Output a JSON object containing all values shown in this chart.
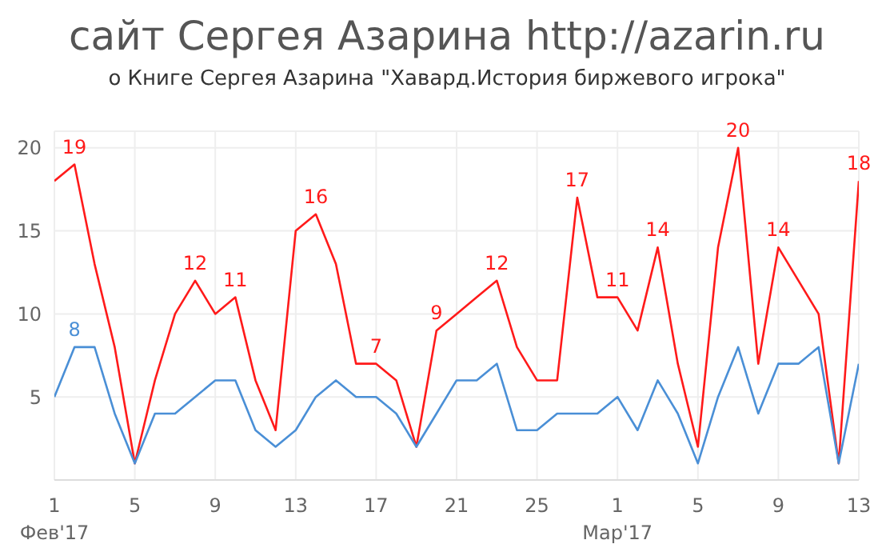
{
  "chart_data": {
    "type": "line",
    "title": "сайт Сергея Азарина http://azarin.ru",
    "subtitle": "о Книге Сергея Азарина \"Хавард.История биржевого игрока\"",
    "x": [
      "2017-02-01",
      "2017-02-02",
      "2017-02-03",
      "2017-02-04",
      "2017-02-05",
      "2017-02-06",
      "2017-02-07",
      "2017-02-08",
      "2017-02-09",
      "2017-02-10",
      "2017-02-11",
      "2017-02-12",
      "2017-02-13",
      "2017-02-14",
      "2017-02-15",
      "2017-02-16",
      "2017-02-17",
      "2017-02-18",
      "2017-02-19",
      "2017-02-20",
      "2017-02-21",
      "2017-02-22",
      "2017-02-23",
      "2017-02-24",
      "2017-02-25",
      "2017-02-26",
      "2017-02-27",
      "2017-02-28",
      "2017-03-01",
      "2017-03-02",
      "2017-03-03",
      "2017-03-04",
      "2017-03-05",
      "2017-03-06",
      "2017-03-07",
      "2017-03-08",
      "2017-03-09",
      "2017-03-10",
      "2017-03-11",
      "2017-03-12",
      "2017-03-13"
    ],
    "series": [
      {
        "color": "#ff1a1a",
        "values": [
          18,
          19,
          13,
          8,
          1,
          6,
          10,
          12,
          10,
          11,
          6,
          3,
          15,
          16,
          13,
          7,
          7,
          6,
          2,
          9,
          10,
          11,
          12,
          8,
          6,
          6,
          17,
          11,
          11,
          9,
          14,
          7,
          2,
          14,
          20,
          7,
          14,
          12,
          10,
          1,
          18
        ],
        "value_labels": [
          null,
          "19",
          null,
          null,
          null,
          null,
          null,
          "12",
          null,
          "11",
          null,
          null,
          null,
          "16",
          null,
          null,
          "7",
          null,
          null,
          "9",
          null,
          null,
          "12",
          null,
          null,
          null,
          "17",
          null,
          "11",
          null,
          "14",
          null,
          null,
          null,
          "20",
          null,
          "14",
          null,
          null,
          null,
          "18"
        ]
      },
      {
        "color": "#4a8fd6",
        "values": [
          5,
          8,
          8,
          4,
          1,
          4,
          4,
          5,
          6,
          6,
          3,
          2,
          3,
          5,
          6,
          5,
          5,
          4,
          2,
          4,
          6,
          6,
          7,
          3,
          3,
          4,
          4,
          4,
          5,
          3,
          6,
          4,
          1,
          5,
          8,
          4,
          7,
          7,
          8,
          1,
          7
        ],
        "value_labels": [
          null,
          "8",
          null,
          null,
          null,
          null,
          null,
          null,
          null,
          null,
          null,
          null,
          null,
          null,
          null,
          null,
          null,
          null,
          null,
          null,
          null,
          null,
          null,
          null,
          null,
          null,
          null,
          null,
          null,
          null,
          null,
          null,
          null,
          null,
          null,
          null,
          null,
          null,
          null,
          null,
          null
        ]
      }
    ],
    "xlim": [
      "2017-02-01",
      "2017-03-13"
    ],
    "xticks": [
      {
        "value": "2017-02-01",
        "label": "1\nФев'17"
      },
      {
        "value": "2017-02-05",
        "label": "5"
      },
      {
        "value": "2017-02-09",
        "label": "9"
      },
      {
        "value": "2017-02-13",
        "label": "13"
      },
      {
        "value": "2017-02-17",
        "label": "17"
      },
      {
        "value": "2017-02-21",
        "label": "21"
      },
      {
        "value": "2017-02-25",
        "label": "25"
      },
      {
        "value": "2017-03-01",
        "label": "1\nМар'17"
      },
      {
        "value": "2017-03-05",
        "label": "5"
      },
      {
        "value": "2017-03-09",
        "label": "9"
      },
      {
        "value": "2017-03-13",
        "label": "13"
      }
    ],
    "ylim": [
      0,
      21
    ],
    "yticks": [
      5,
      10,
      15,
      20
    ],
    "grid": true,
    "legend": false,
    "marker": "none",
    "line_style": "solid"
  }
}
